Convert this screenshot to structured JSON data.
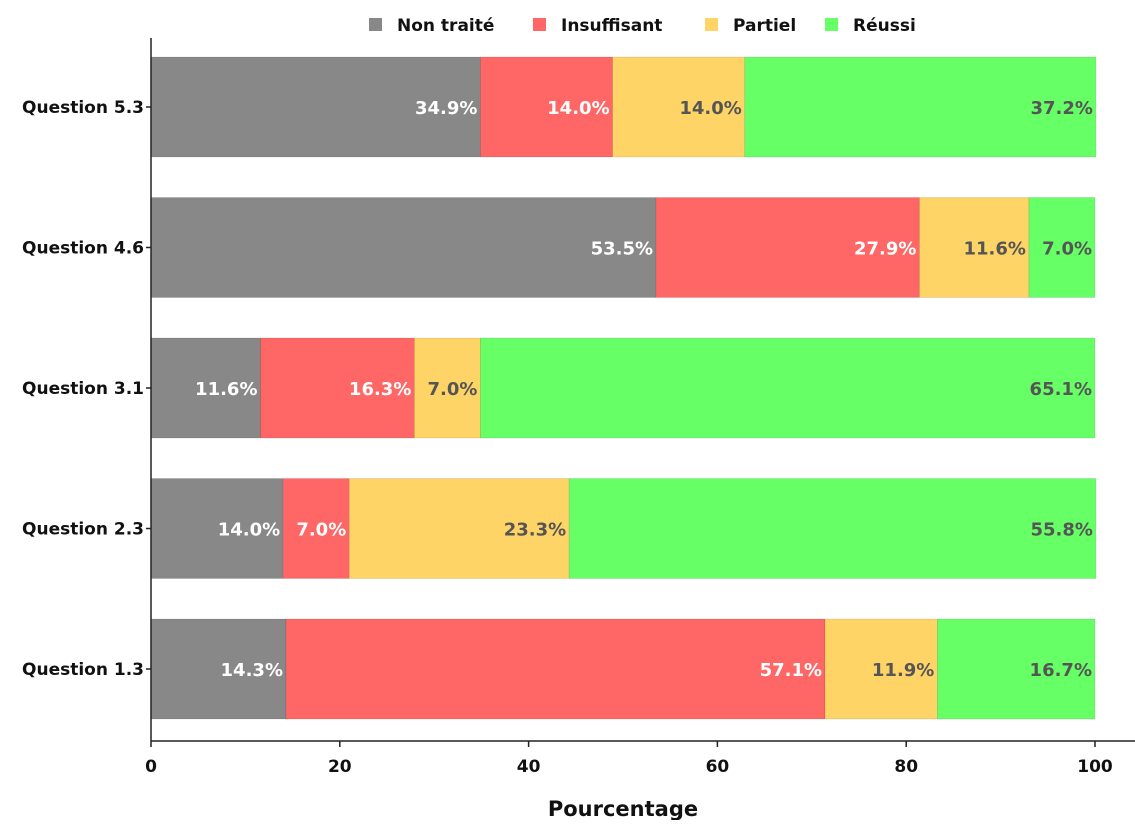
{
  "chart_data": {
    "type": "bar",
    "orientation": "horizontal",
    "stacked": true,
    "categories": [
      "Question 5.3",
      "Question 4.6",
      "Question 3.1",
      "Question 2.3",
      "Question 1.3"
    ],
    "series": [
      {
        "name": "Non traité",
        "color": "#888888",
        "label_color": "#ffffff",
        "values": [
          34.9,
          53.5,
          11.6,
          14.0,
          14.3
        ],
        "labels": [
          "34.9%",
          "53.5%",
          "11.6%",
          "14.0%",
          "14.3%"
        ]
      },
      {
        "name": "Insuffisant",
        "color": "#ff6666",
        "label_color": "#ffffff",
        "values": [
          14.0,
          27.9,
          16.3,
          7.0,
          57.1
        ],
        "labels": [
          "14.0%",
          "27.9%",
          "16.3%",
          "7.0%",
          "57.1%"
        ]
      },
      {
        "name": "Partiel",
        "color": "#ffd466",
        "label_color": "#555555",
        "values": [
          14.0,
          11.6,
          7.0,
          23.3,
          11.9
        ],
        "labels": [
          "14.0%",
          "11.6%",
          "7.0%",
          "23.3%",
          "11.9%"
        ]
      },
      {
        "name": "Réussi",
        "color": "#66ff66",
        "label_color": "#555555",
        "values": [
          37.2,
          7.0,
          65.1,
          55.8,
          16.7
        ],
        "labels": [
          "37.2%",
          "7.0%",
          "65.1%",
          "55.8%",
          "16.7%"
        ]
      }
    ],
    "xlabel": "Pourcentage",
    "ylabel": "",
    "xlim": [
      0,
      100
    ],
    "xticks": [
      0,
      20,
      40,
      60,
      80,
      100
    ],
    "xtick_labels": [
      "0",
      "20",
      "40",
      "60",
      "80",
      "100"
    ],
    "grid": false,
    "legend_position": "top-center"
  }
}
